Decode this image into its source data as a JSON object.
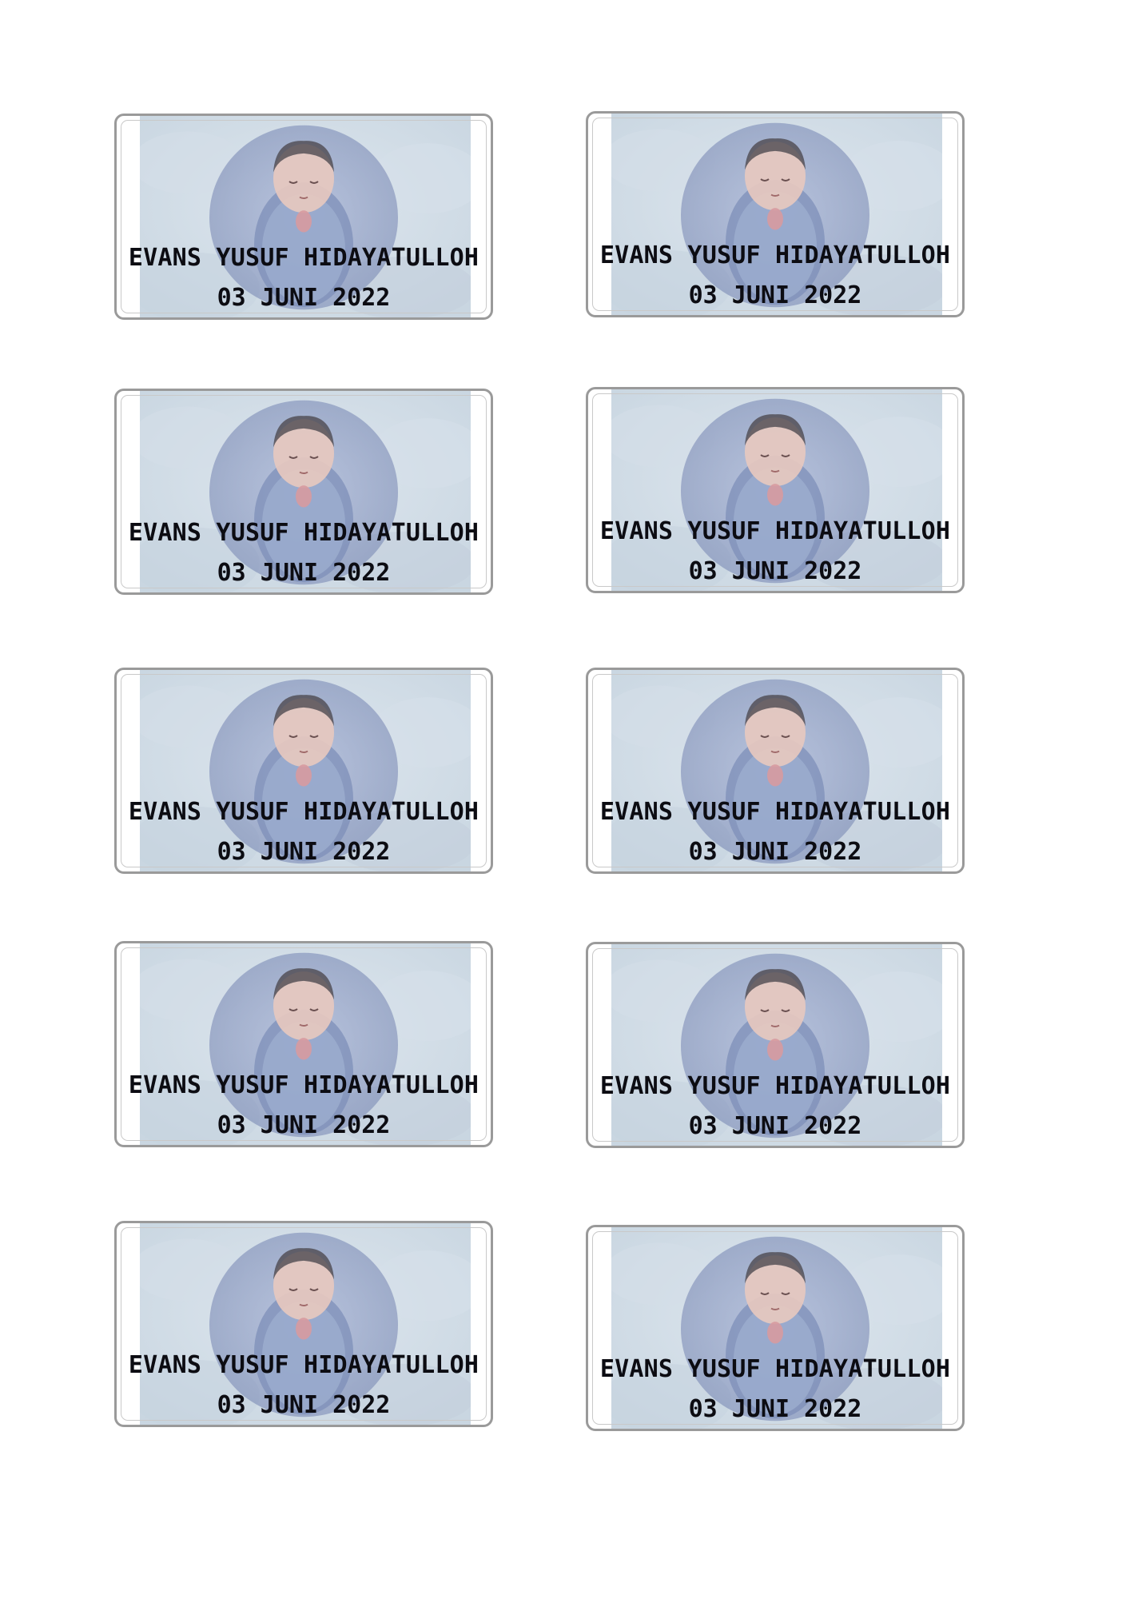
{
  "labels": [
    {
      "name": "EVANS YUSUF HIDAYATULLOH",
      "date": "03 JUNI 2022"
    },
    {
      "name": "EVANS YUSUF HIDAYATULLOH",
      "date": "03 JUNI 2022"
    },
    {
      "name": "EVANS YUSUF HIDAYATULLOH",
      "date": "03 JUNI 2022"
    },
    {
      "name": "EVANS YUSUF HIDAYATULLOH",
      "date": "03 JUNI 2022"
    },
    {
      "name": "EVANS YUSUF HIDAYATULLOH",
      "date": "03 JUNI 2022"
    },
    {
      "name": "EVANS YUSUF HIDAYATULLOH",
      "date": "03 JUNI 2022"
    },
    {
      "name": "EVANS YUSUF HIDAYATULLOH",
      "date": "03 JUNI 2022"
    },
    {
      "name": "EVANS YUSUF HIDAYATULLOH",
      "date": "03 JUNI 2022"
    },
    {
      "name": "EVANS YUSUF HIDAYATULLOH",
      "date": "03 JUNI 2022"
    },
    {
      "name": "EVANS YUSUF HIDAYATULLOH",
      "date": "03 JUNI 2022"
    }
  ],
  "colors": {
    "text": "#0c0c12",
    "border": "#9a9a9a",
    "photo_background": "#c9d6e1",
    "blanket": "#7e8fb8",
    "skin": "#e8c9bf"
  },
  "photo_subject": "sleeping-newborn-baby-photo"
}
